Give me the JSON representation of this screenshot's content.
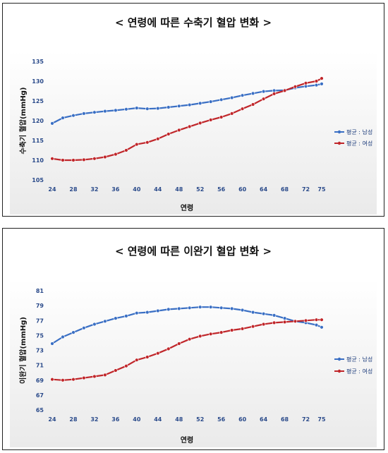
{
  "chart_data": [
    {
      "type": "line",
      "title": "< 연령에 따른 수축기 혈압 변화 >",
      "xlabel": "연령",
      "ylabel": "수축기 혈압(mmHg)",
      "x_ticks": [
        24,
        28,
        32,
        36,
        40,
        44,
        48,
        52,
        56,
        60,
        64,
        68,
        72,
        75
      ],
      "ylim": [
        105,
        135
      ],
      "y_ticks": [
        105,
        110,
        115,
        120,
        125,
        130,
        135
      ],
      "legend_position": "right",
      "x": [
        24,
        26,
        28,
        30,
        32,
        34,
        36,
        38,
        40,
        42,
        44,
        46,
        48,
        50,
        52,
        54,
        56,
        58,
        60,
        62,
        64,
        66,
        68,
        70,
        72,
        74,
        75
      ],
      "series": [
        {
          "name": "평균 : 남성",
          "color": "#3a6fc4",
          "values": [
            119.3,
            120.7,
            121.3,
            121.8,
            122.1,
            122.4,
            122.6,
            122.9,
            123.2,
            123.0,
            123.1,
            123.4,
            123.7,
            124.0,
            124.4,
            124.8,
            125.3,
            125.8,
            126.4,
            126.9,
            127.4,
            127.6,
            127.7,
            128.3,
            128.7,
            129.0,
            129.3
          ]
        },
        {
          "name": "평균 : 여성",
          "color": "#c0262a",
          "values": [
            110.4,
            110.0,
            110.0,
            110.1,
            110.4,
            110.8,
            111.5,
            112.5,
            114.0,
            114.5,
            115.4,
            116.6,
            117.6,
            118.5,
            119.4,
            120.2,
            120.9,
            121.8,
            123.0,
            124.1,
            125.5,
            126.8,
            127.6,
            128.6,
            129.5,
            130.0,
            130.7
          ]
        }
      ]
    },
    {
      "type": "line",
      "title": "< 연령에 따른 이완기 혈압 변화 >",
      "xlabel": "연령",
      "ylabel": "이완기 혈압(mmHg)",
      "x_ticks": [
        24,
        28,
        32,
        36,
        40,
        44,
        48,
        52,
        56,
        60,
        64,
        68,
        72,
        75
      ],
      "ylim": [
        65,
        81
      ],
      "y_ticks": [
        65,
        67,
        69,
        71,
        73,
        75,
        77,
        79,
        81
      ],
      "legend_position": "right",
      "x": [
        24,
        26,
        28,
        30,
        32,
        34,
        36,
        38,
        40,
        42,
        44,
        46,
        48,
        50,
        52,
        54,
        56,
        58,
        60,
        62,
        64,
        66,
        68,
        70,
        72,
        74,
        75
      ],
      "series": [
        {
          "name": "평균 : 남성",
          "color": "#3a6fc4",
          "values": [
            73.9,
            74.8,
            75.4,
            76.0,
            76.5,
            76.9,
            77.3,
            77.6,
            78.0,
            78.1,
            78.3,
            78.5,
            78.6,
            78.7,
            78.8,
            78.8,
            78.7,
            78.6,
            78.4,
            78.1,
            77.9,
            77.7,
            77.3,
            76.9,
            76.7,
            76.4,
            76.1
          ]
        },
        {
          "name": "평균 : 여성",
          "color": "#c0262a",
          "values": [
            69.1,
            69.0,
            69.1,
            69.3,
            69.5,
            69.7,
            70.3,
            70.9,
            71.7,
            72.1,
            72.6,
            73.2,
            73.9,
            74.5,
            74.9,
            75.2,
            75.4,
            75.7,
            75.9,
            76.2,
            76.5,
            76.7,
            76.8,
            76.9,
            77.0,
            77.1,
            77.1
          ]
        }
      ]
    }
  ]
}
